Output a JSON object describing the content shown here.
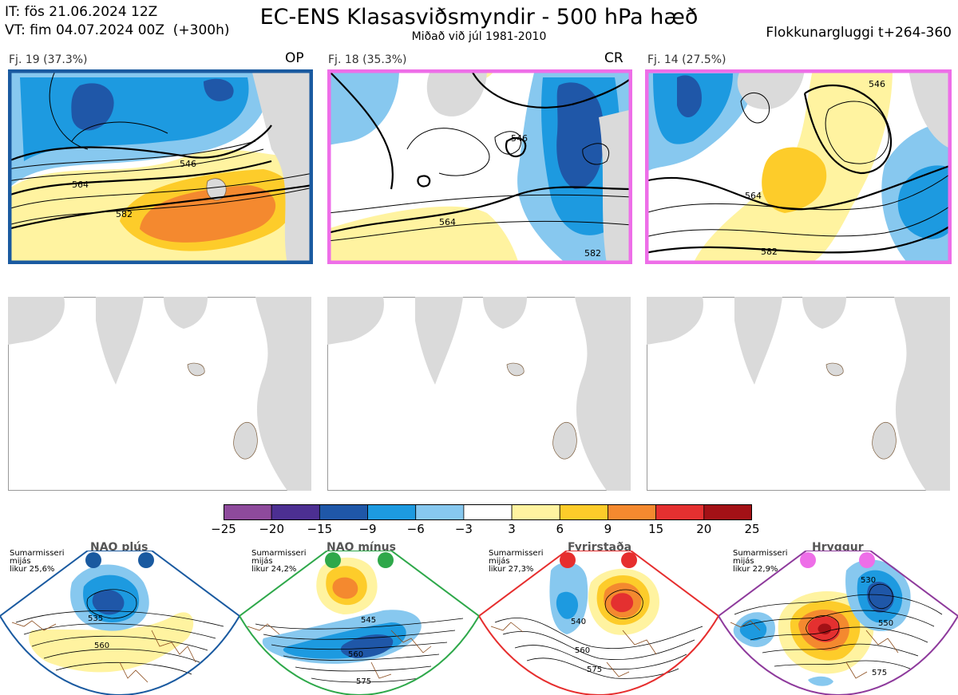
{
  "header": {
    "init_line": "IT: fös 21.06.2024 12Z",
    "valid_line": "VT: fim 04.07.2024 00Z  (+300h)",
    "title": "EC-ENS Klasasviðsmyndir - 500 hPa hæð",
    "subtitle": "Miðað við júl 1981-2010",
    "window": "Flokkunargluggi t+264-360"
  },
  "clusters": [
    {
      "label": "Fj. 19 (37.3%)",
      "tag": "OP",
      "border_color": "#1a5aa0",
      "contours": [
        "546",
        "564",
        "582"
      ]
    },
    {
      "label": "Fj. 18 (35.3%)",
      "tag": "CR",
      "border_color": "#ee6ee8",
      "contours": [
        "546",
        "564",
        "582"
      ]
    },
    {
      "label": "Fj. 14 (27.5%)",
      "tag": "",
      "border_color": "#ee6ee8",
      "contours": [
        "546",
        "564",
        "582"
      ]
    }
  ],
  "colorbar": {
    "ticks": [
      "−25",
      "−20",
      "−15",
      "−9",
      "−6",
      "−3",
      "3",
      "6",
      "9",
      "15",
      "20",
      "25"
    ],
    "colors": [
      "#8e4a9c",
      "#4c2f92",
      "#1f57a8",
      "#1d9ae0",
      "#87c8ef",
      "#ffffff",
      "#fff3a0",
      "#fdcc2a",
      "#f4892f",
      "#e43030",
      "#a31116"
    ]
  },
  "regimes": [
    {
      "name": "NAO plús",
      "note_lines": [
        "Sumarmisseri",
        "mijás",
        "likur 25,6%"
      ],
      "color": "#1a5aa0",
      "contours": [
        "535",
        "560"
      ]
    },
    {
      "name": "NAO mínus",
      "note_lines": [
        "Sumarmisseri",
        "mijás",
        "likur 24,2%"
      ],
      "color": "#2ea84a",
      "contours": [
        "545",
        "560",
        "575"
      ]
    },
    {
      "name": "Fyrirstaða",
      "note_lines": [
        "Sumarmisseri",
        "mijás",
        "likur 27,3%"
      ],
      "color": "#e62e2e",
      "contours": [
        "540",
        "560",
        "575"
      ]
    },
    {
      "name": "Hryggur",
      "note_lines": [
        "Sumarmisseri",
        "mijás",
        "likur 22,9%"
      ],
      "color": "#ee6ee8",
      "contours": [
        "530",
        "550",
        "575"
      ]
    }
  ]
}
